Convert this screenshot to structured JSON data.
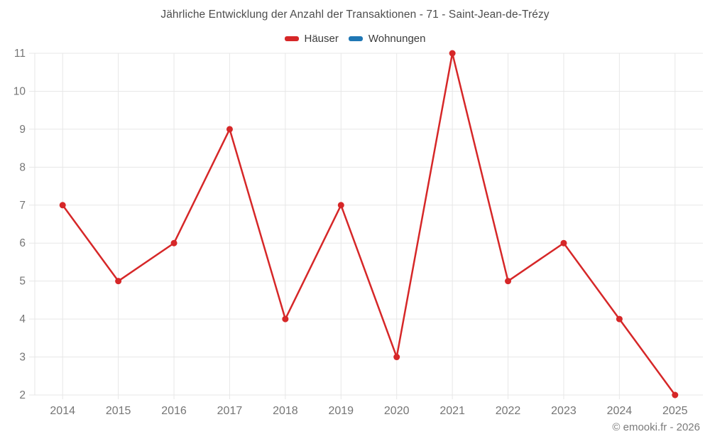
{
  "title": "Jährliche Entwicklung der Anzahl der Transaktionen - 71 - Saint-Jean-de-Trézy",
  "legend": {
    "items": [
      {
        "label": "Häuser",
        "color": "#d62728"
      },
      {
        "label": "Wohnungen",
        "color": "#1f77b4"
      }
    ]
  },
  "copyright": "© emooki.fr - 2026",
  "colors": {
    "grid": "#e7e7e7",
    "tick_label": "#757575",
    "series_red": "#d62728",
    "series_blue": "#1f77b4"
  },
  "chart_data": {
    "type": "line",
    "title": "Jährliche Entwicklung der Anzahl der Transaktionen - 71 - Saint-Jean-de-Trézy",
    "categories": [
      "2014",
      "2015",
      "2016",
      "2017",
      "2018",
      "2019",
      "2020",
      "2021",
      "2022",
      "2023",
      "2024",
      "2025"
    ],
    "series": [
      {
        "name": "Häuser",
        "color": "#d62728",
        "values": [
          7,
          5,
          6,
          9,
          4,
          7,
          3,
          11,
          5,
          6,
          4,
          2
        ]
      },
      {
        "name": "Wohnungen",
        "color": "#1f77b4",
        "values": []
      }
    ],
    "xlabel": "",
    "ylabel": "",
    "ylim": [
      2,
      11
    ],
    "yticks": [
      2,
      3,
      4,
      5,
      6,
      7,
      8,
      9,
      10,
      11
    ],
    "grid": true,
    "legend_position": "top"
  }
}
